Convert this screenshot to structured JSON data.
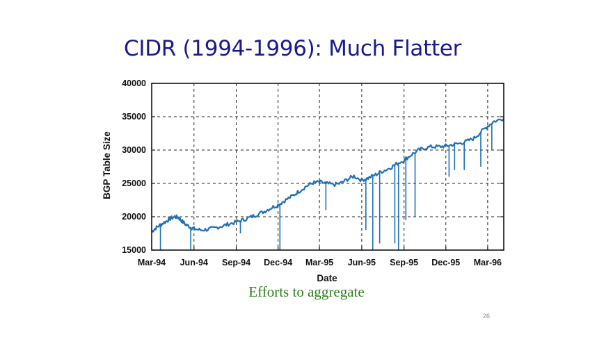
{
  "slide": {
    "title": "CIDR (1994-1996): Much Flatter",
    "caption": "Efforts to aggregate",
    "page_number": "26"
  },
  "colors": {
    "title": "#1a1a8c",
    "series": "#1f6fb5",
    "caption": "#2e7d1a"
  },
  "chart_data": {
    "type": "line",
    "title": "",
    "xlabel": "Date",
    "ylabel": "BGP Table Size",
    "x_tick_labels": [
      "Mar-94",
      "Jun-94",
      "Sep-94",
      "Dec-94",
      "Mar-95",
      "Jun-95",
      "Sep-95",
      "Dec-95",
      "Mar-96"
    ],
    "y_tick_labels": [
      "15000",
      "20000",
      "25000",
      "30000",
      "35000",
      "40000"
    ],
    "ylim": [
      15000,
      40000
    ],
    "xlim": [
      "1994-03-01",
      "1996-04-05"
    ],
    "grid": true,
    "grid_style": "dashed",
    "legend": false,
    "series": [
      {
        "points": [
          [
            "1994-03-01",
            17800
          ],
          [
            "1994-03-10",
            18300
          ],
          [
            "1994-03-20",
            18800
          ],
          [
            "1994-04-01",
            19300
          ],
          [
            "1994-04-10",
            19700
          ],
          [
            "1994-04-20",
            20000
          ],
          [
            "1994-04-28",
            19900
          ],
          [
            "1994-05-05",
            19400
          ],
          [
            "1994-05-15",
            18800
          ],
          [
            "1994-05-25",
            18400
          ],
          [
            "1994-06-01",
            18200
          ],
          [
            "1994-06-15",
            18000
          ],
          [
            "1994-07-01",
            18100
          ],
          [
            "1994-07-15",
            18300
          ],
          [
            "1994-08-01",
            18600
          ],
          [
            "1994-08-15",
            18900
          ],
          [
            "1994-09-01",
            19200
          ],
          [
            "1994-09-15",
            19500
          ],
          [
            "1994-10-01",
            19900
          ],
          [
            "1994-10-15",
            20300
          ],
          [
            "1994-11-01",
            20800
          ],
          [
            "1994-11-15",
            21300
          ],
          [
            "1994-12-01",
            21800
          ],
          [
            "1994-12-15",
            22400
          ],
          [
            "1995-01-01",
            23100
          ],
          [
            "1995-01-15",
            23800
          ],
          [
            "1995-02-01",
            24600
          ],
          [
            "1995-02-15",
            25100
          ],
          [
            "1995-03-01",
            25200
          ],
          [
            "1995-03-15",
            25000
          ],
          [
            "1995-04-01",
            24800
          ],
          [
            "1995-04-15",
            25000
          ],
          [
            "1995-05-01",
            25600
          ],
          [
            "1995-05-15",
            26100
          ],
          [
            "1995-06-01",
            25500
          ],
          [
            "1995-06-15",
            25800
          ],
          [
            "1995-07-01",
            26300
          ],
          [
            "1995-07-15",
            26800
          ],
          [
            "1995-08-01",
            27300
          ],
          [
            "1995-08-15",
            27900
          ],
          [
            "1995-09-01",
            28500
          ],
          [
            "1995-09-15",
            29200
          ],
          [
            "1995-10-01",
            29900
          ],
          [
            "1995-10-15",
            30300
          ],
          [
            "1995-11-01",
            30500
          ],
          [
            "1995-11-15",
            30500
          ],
          [
            "1995-12-01",
            30600
          ],
          [
            "1995-12-15",
            30800
          ],
          [
            "1996-01-01",
            31000
          ],
          [
            "1996-01-15",
            31300
          ],
          [
            "1996-02-01",
            31800
          ],
          [
            "1996-02-15",
            32700
          ],
          [
            "1996-03-01",
            33600
          ],
          [
            "1996-03-15",
            34300
          ],
          [
            "1996-04-05",
            34700
          ]
        ],
        "drops": [
          [
            "1994-03-20",
            15000
          ],
          [
            "1994-05-25",
            15000
          ],
          [
            "1994-09-10",
            17500
          ],
          [
            "1994-12-05",
            15000
          ],
          [
            "1995-03-15",
            21000
          ],
          [
            "1995-06-10",
            18000
          ],
          [
            "1995-06-25",
            15000
          ],
          [
            "1995-07-10",
            16000
          ],
          [
            "1995-08-12",
            16000
          ],
          [
            "1995-08-20",
            15000
          ],
          [
            "1995-09-05",
            19500
          ],
          [
            "1995-09-25",
            20000
          ],
          [
            "1995-12-08",
            26000
          ],
          [
            "1995-12-20",
            27000
          ],
          [
            "1996-01-10",
            27000
          ],
          [
            "1996-02-15",
            27500
          ],
          [
            "1996-03-10",
            30000
          ]
        ]
      }
    ]
  }
}
